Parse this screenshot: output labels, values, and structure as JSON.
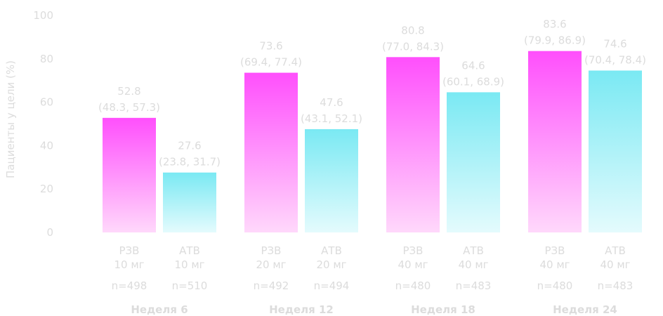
{
  "chart_data": {
    "type": "bar",
    "ylabel": "Пациенты у цели (%)",
    "ylim": [
      0,
      100
    ],
    "yticks": [
      0,
      20,
      40,
      60,
      80,
      100
    ],
    "grid": false,
    "colors": {
      "rzv_top": "#ff4ffc",
      "rzv_bottom": "#ffd8fb",
      "atv_top": "#7ae9f3",
      "atv_bottom": "#e4fbfd"
    },
    "groups": [
      {
        "label": "Неделя 6",
        "bars": [
          {
            "series": "RZV",
            "line1": "РЗВ",
            "line2": "10 мг",
            "n": "n=498",
            "value": 52.8,
            "value_label": "52.8",
            "ci_label": "(48.3, 57.3)"
          },
          {
            "series": "ATV",
            "line1": "АТВ",
            "line2": "10 мг",
            "n": "n=510",
            "value": 27.6,
            "value_label": "27.6",
            "ci_label": "(23.8, 31.7)"
          }
        ]
      },
      {
        "label": "Неделя 12",
        "bars": [
          {
            "series": "RZV",
            "line1": "РЗВ",
            "line2": "20 мг",
            "n": "n=492",
            "value": 73.6,
            "value_label": "73.6",
            "ci_label": "(69.4, 77.4)"
          },
          {
            "series": "ATV",
            "line1": "АТВ",
            "line2": "20 мг",
            "n": "n=494",
            "value": 47.6,
            "value_label": "47.6",
            "ci_label": "(43.1, 52.1)"
          }
        ]
      },
      {
        "label": "Неделя 18",
        "bars": [
          {
            "series": "RZV",
            "line1": "РЗВ",
            "line2": "40 мг",
            "n": "n=480",
            "value": 80.8,
            "value_label": "80.8",
            "ci_label": "(77.0, 84.3)"
          },
          {
            "series": "ATV",
            "line1": "АТВ",
            "line2": "40 мг",
            "n": "n=483",
            "value": 64.6,
            "value_label": "64.6",
            "ci_label": "(60.1, 68.9)"
          }
        ]
      },
      {
        "label": "Неделя 24",
        "bars": [
          {
            "series": "RZV",
            "line1": "РЗВ",
            "line2": "40 мг",
            "n": "n=480",
            "value": 83.6,
            "value_label": "83.6",
            "ci_label": "(79.9, 86.9)"
          },
          {
            "series": "ATV",
            "line1": "АТВ",
            "line2": "40 мг",
            "n": "n=483",
            "value": 74.6,
            "value_label": "74.6",
            "ci_label": "(70.4, 78.4)"
          }
        ]
      }
    ]
  }
}
